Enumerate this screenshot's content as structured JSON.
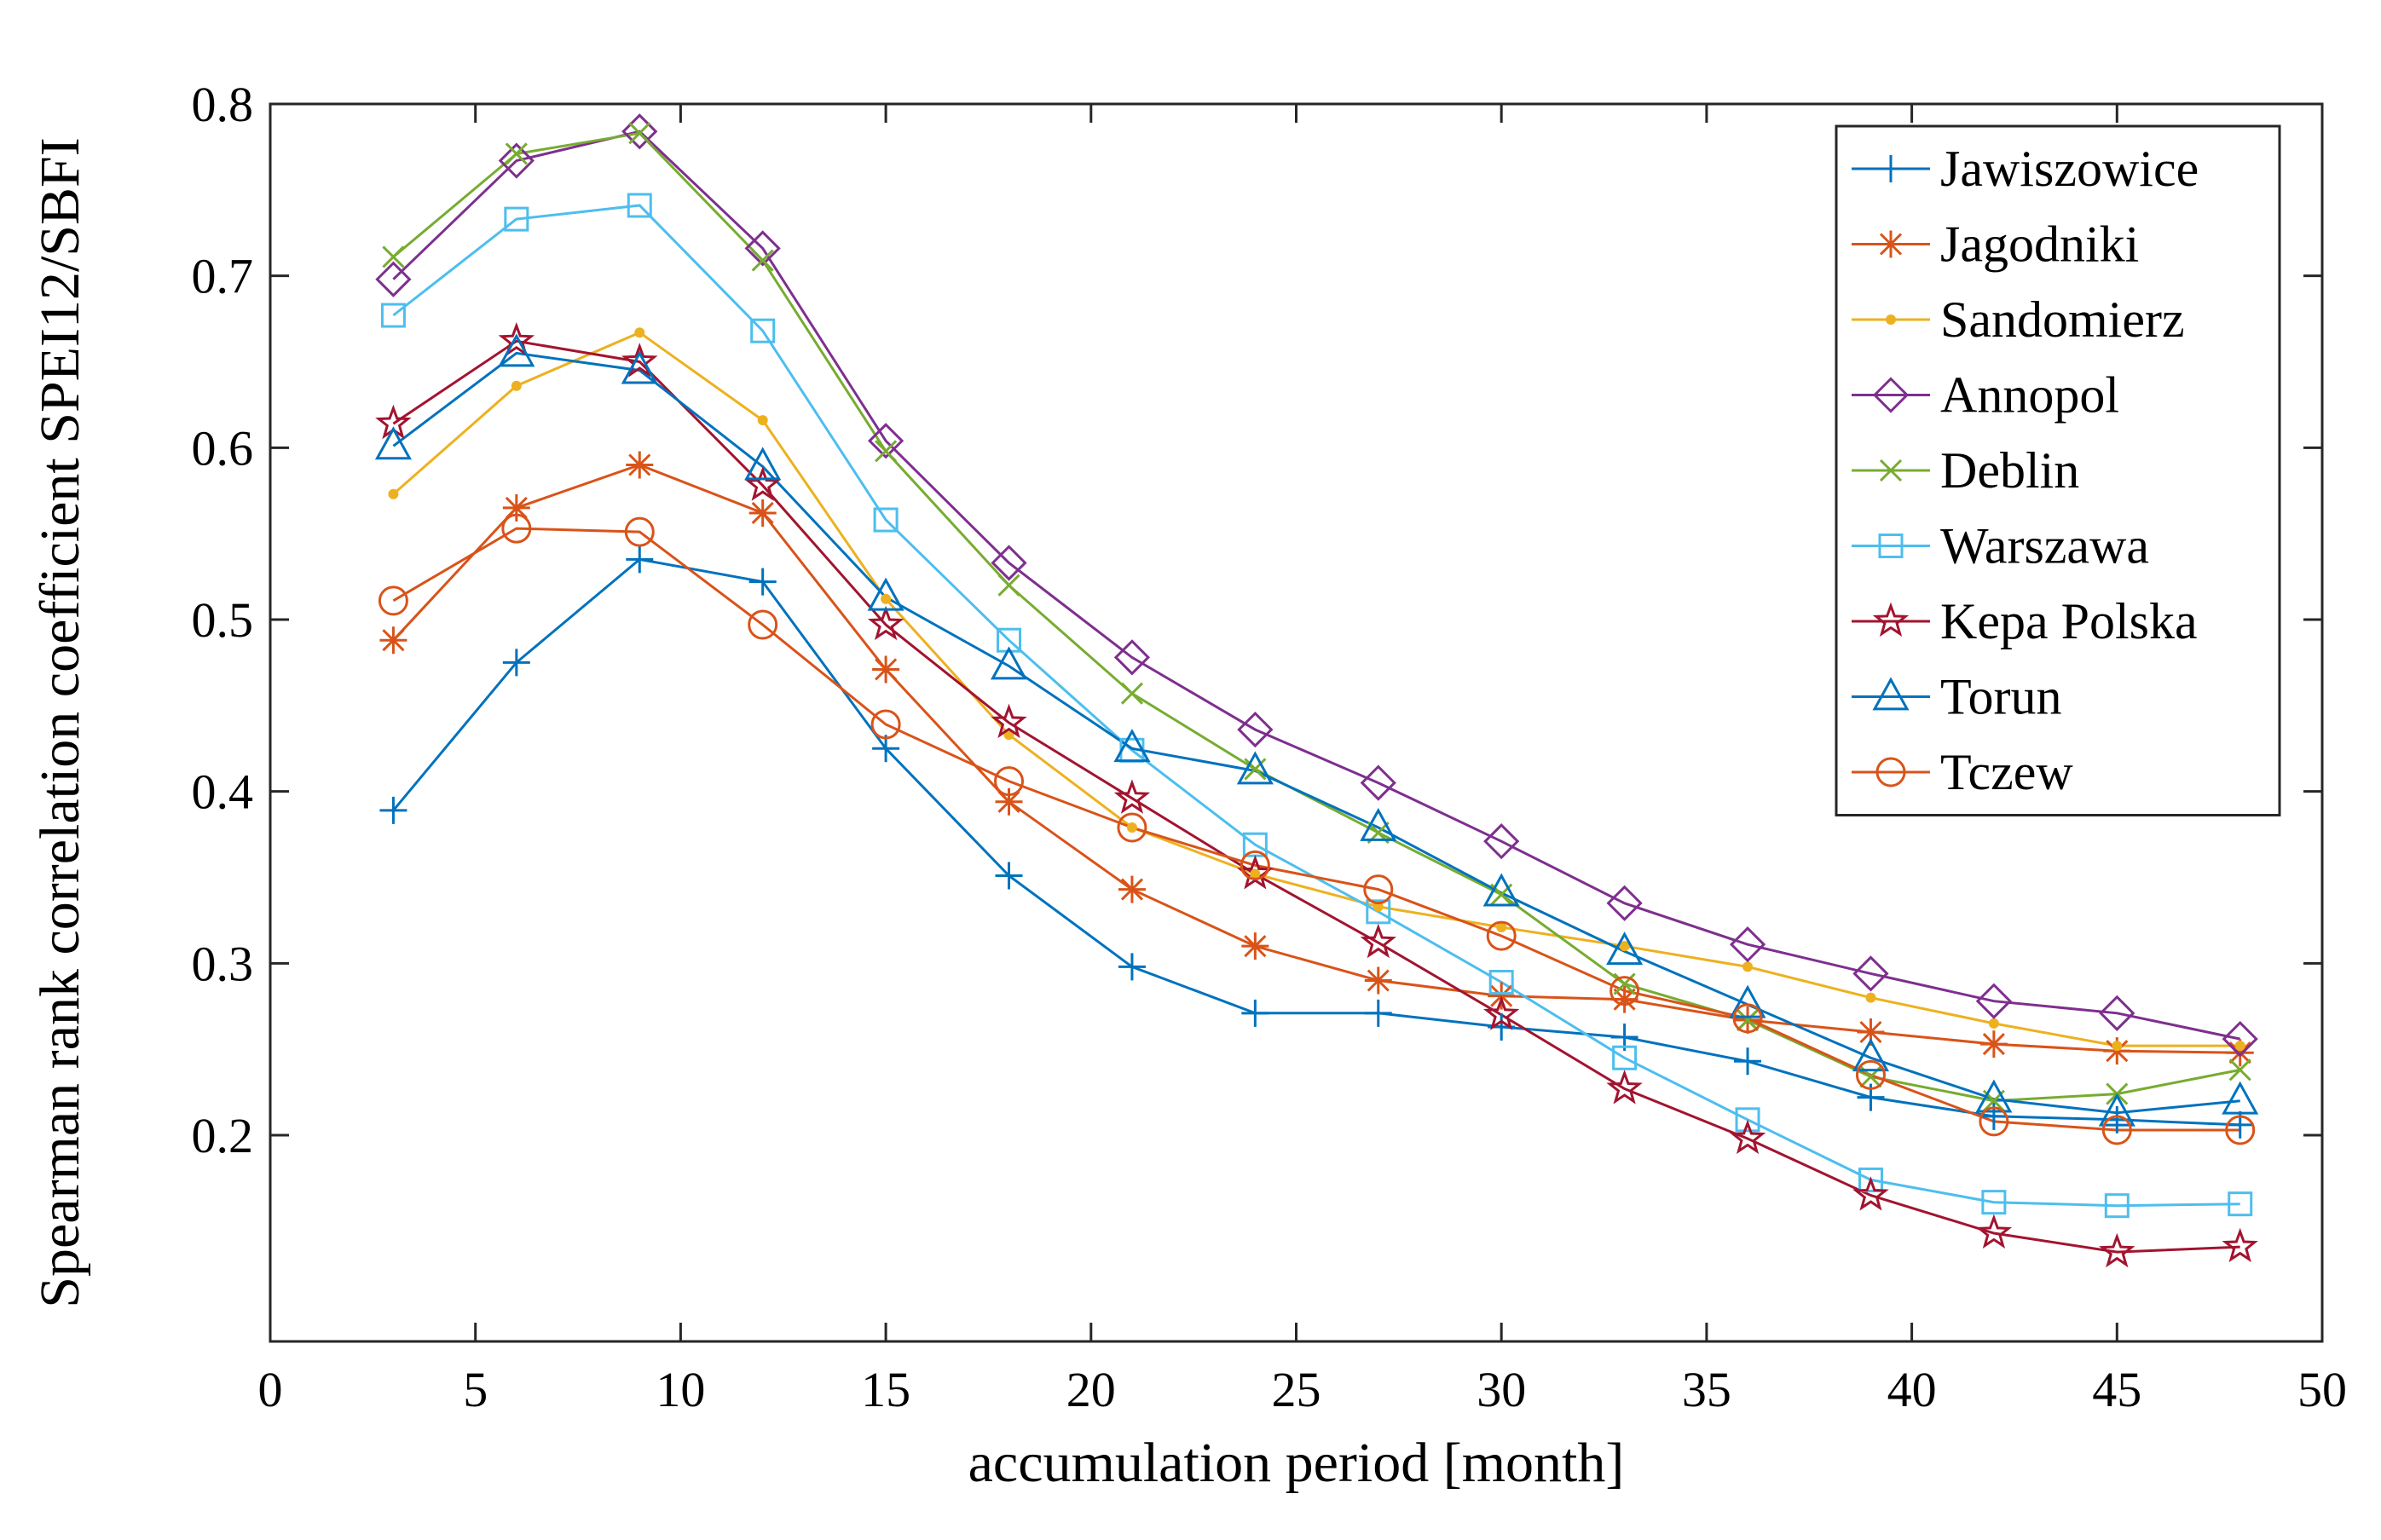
{
  "chart_data": {
    "type": "line",
    "title": "",
    "xlabel": "accumulation period [month]",
    "ylabel": "Spearman rank correlation coefficient SPEI12/SBFI",
    "xlim": [
      0,
      50
    ],
    "ylim": [
      0.08,
      0.8
    ],
    "xticks": [
      0,
      5,
      10,
      15,
      20,
      25,
      30,
      35,
      40,
      45,
      50
    ],
    "xtick_labels": [
      "0",
      "5",
      "10",
      "15",
      "20",
      "25",
      "30",
      "35",
      "40",
      "45",
      "50"
    ],
    "yticks": [
      0.2,
      0.3,
      0.4,
      0.5,
      0.6,
      0.7,
      0.8
    ],
    "ytick_labels": [
      "0.2",
      "0.3",
      "0.4",
      "0.5",
      "0.6",
      "0.7",
      "0.8"
    ],
    "grid": false,
    "legend_position": "top-right",
    "x": [
      3,
      6,
      9,
      12,
      15,
      18,
      21,
      24,
      27,
      30,
      33,
      36,
      39,
      42,
      45,
      48
    ],
    "series": [
      {
        "name": "Jawiszowice",
        "marker": "plus",
        "color": "#0072BD",
        "values": [
          0.389,
          0.475,
          0.535,
          0.522,
          0.425,
          0.351,
          0.298,
          0.271,
          0.271,
          0.263,
          0.257,
          0.243,
          0.222,
          0.211,
          0.209,
          0.206
        ]
      },
      {
        "name": "Jagodniki",
        "marker": "asterisk",
        "color": "#D95319",
        "values": [
          0.488,
          0.565,
          0.59,
          0.562,
          0.471,
          0.394,
          0.343,
          0.31,
          0.29,
          0.281,
          0.279,
          0.267,
          0.26,
          0.253,
          0.249,
          0.248
        ]
      },
      {
        "name": "Sandomierz",
        "marker": "point",
        "color": "#EDB120",
        "values": [
          0.573,
          0.636,
          0.667,
          0.616,
          0.512,
          0.433,
          0.379,
          0.352,
          0.333,
          0.321,
          0.31,
          0.298,
          0.28,
          0.265,
          0.252,
          0.252
        ]
      },
      {
        "name": "Annopol",
        "marker": "diamond",
        "color": "#7E2F8E",
        "values": [
          0.698,
          0.767,
          0.784,
          0.716,
          0.604,
          0.533,
          0.478,
          0.436,
          0.405,
          0.371,
          0.335,
          0.311,
          0.294,
          0.278,
          0.271,
          0.256
        ]
      },
      {
        "name": "Deblin",
        "marker": "x",
        "color": "#77AC30",
        "values": [
          0.711,
          0.771,
          0.783,
          0.709,
          0.598,
          0.52,
          0.457,
          0.413,
          0.376,
          0.34,
          0.288,
          0.267,
          0.234,
          0.22,
          0.224,
          0.238
        ]
      },
      {
        "name": "Warszawa",
        "marker": "square",
        "color": "#4DBEEE",
        "values": [
          0.677,
          0.733,
          0.741,
          0.668,
          0.558,
          0.488,
          0.424,
          0.369,
          0.33,
          0.289,
          0.245,
          0.209,
          0.174,
          0.161,
          0.159,
          0.16
        ]
      },
      {
        "name": "Kepa Polska",
        "marker": "pentagram",
        "color": "#A2142F",
        "values": [
          0.614,
          0.662,
          0.65,
          0.578,
          0.497,
          0.44,
          0.396,
          0.352,
          0.312,
          0.27,
          0.227,
          0.198,
          0.165,
          0.143,
          0.132,
          0.135
        ]
      },
      {
        "name": "Torun",
        "marker": "triangle",
        "color": "#0072BD",
        "values": [
          0.601,
          0.655,
          0.645,
          0.589,
          0.513,
          0.473,
          0.425,
          0.412,
          0.379,
          0.341,
          0.307,
          0.276,
          0.245,
          0.221,
          0.213,
          0.22
        ]
      },
      {
        "name": "Tczew",
        "marker": "circle",
        "color": "#D95319",
        "values": [
          0.511,
          0.553,
          0.551,
          0.497,
          0.439,
          0.406,
          0.379,
          0.357,
          0.343,
          0.316,
          0.284,
          0.268,
          0.235,
          0.208,
          0.203,
          0.203
        ]
      }
    ]
  }
}
